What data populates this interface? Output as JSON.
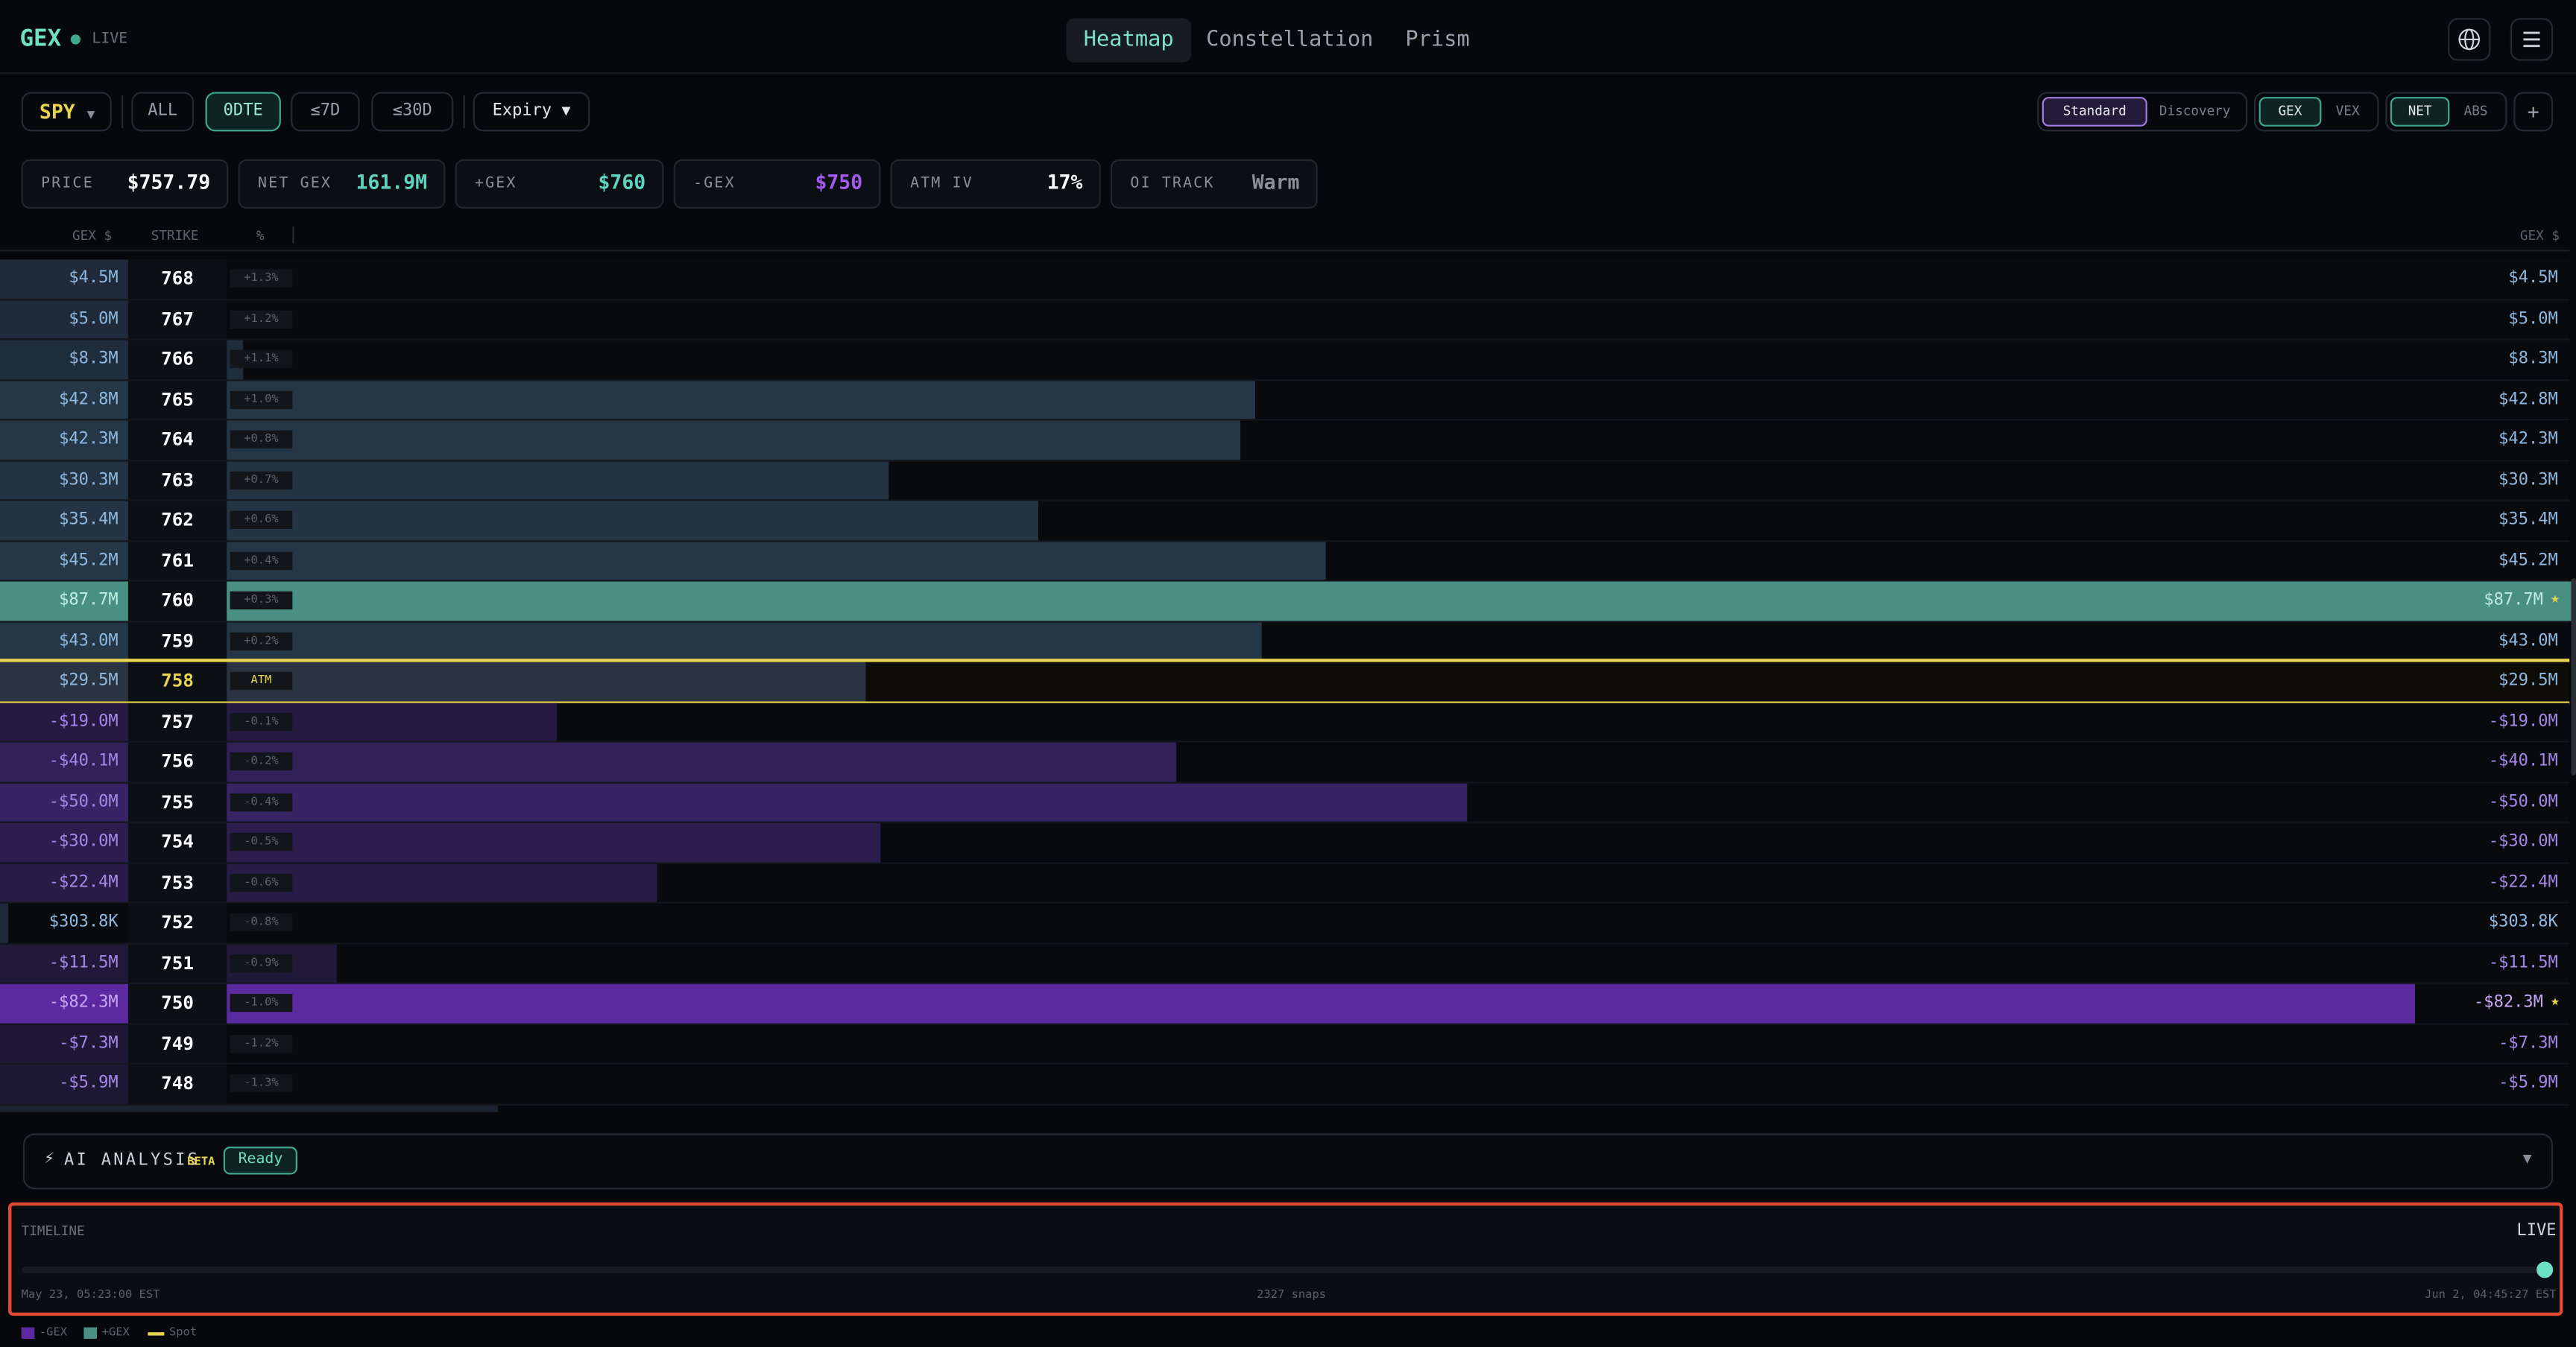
{
  "header": {
    "logo": "GEX",
    "status": "LIVE",
    "tabs": [
      "Heatmap",
      "Constellation",
      "Prism"
    ],
    "active_tab": 0
  },
  "toolbar": {
    "symbol": "SPY",
    "expiry_filters": [
      "ALL",
      "0DTE",
      "≤7D",
      "≤30D"
    ],
    "active_filter": 1,
    "expiry": "Expiry",
    "modes": [
      "Standard",
      "Discovery"
    ],
    "greeks": [
      "GEX",
      "VEX"
    ],
    "aggregation": [
      "NET",
      "ABS"
    ],
    "add": "+"
  },
  "stats": [
    {
      "label": "PRICE",
      "value": "$757.79",
      "color": "#ffffff"
    },
    {
      "label": "NET GEX",
      "value": "161.9M",
      "color": "#5fd4bf"
    },
    {
      "label": "+GEX",
      "value": "$760",
      "color": "#5fd4bf"
    },
    {
      "label": "-GEX",
      "value": "$750",
      "color": "#a45cf0"
    },
    {
      "label": "ATM IV",
      "value": "17%",
      "color": "#ffffff"
    },
    {
      "label": "OI TRACK",
      "value": "Warm",
      "color": "#8a8f98"
    }
  ],
  "columns": {
    "gex": "GEX $",
    "strike": "STRIKE",
    "pct": "%",
    "gex_right": "GEX $"
  },
  "atm_row": 10,
  "rows": [
    {
      "strike": "768",
      "gex_label": "$4.5M",
      "pct": "+1.3%",
      "gex": 4.5
    },
    {
      "strike": "767",
      "gex_label": "$5.0M",
      "pct": "+1.2%",
      "gex": 5.0
    },
    {
      "strike": "766",
      "gex_label": "$8.3M",
      "pct": "+1.1%",
      "gex": 8.3
    },
    {
      "strike": "765",
      "gex_label": "$42.8M",
      "pct": "+1.0%",
      "gex": 42.8
    },
    {
      "strike": "764",
      "gex_label": "$42.3M",
      "pct": "+0.8%",
      "gex": 42.3
    },
    {
      "strike": "763",
      "gex_label": "$30.3M",
      "pct": "+0.7%",
      "gex": 30.3
    },
    {
      "strike": "762",
      "gex_label": "$35.4M",
      "pct": "+0.6%",
      "gex": 35.4
    },
    {
      "strike": "761",
      "gex_label": "$45.2M",
      "pct": "+0.4%",
      "gex": 45.2
    },
    {
      "strike": "760",
      "gex_label": "$87.7M",
      "pct": "+0.3%",
      "gex": 87.7,
      "flag": "★"
    },
    {
      "strike": "759",
      "gex_label": "$43.0M",
      "pct": "+0.2%",
      "gex": 43.0
    },
    {
      "strike": "758",
      "gex_label": "$29.5M",
      "pct": "ATM",
      "gex": 29.5
    },
    {
      "strike": "757",
      "gex_label": "-$19.0M",
      "pct": "-0.1%",
      "gex": -19.0
    },
    {
      "strike": "756",
      "gex_label": "-$40.1M",
      "pct": "-0.2%",
      "gex": -40.1
    },
    {
      "strike": "755",
      "gex_label": "-$50.0M",
      "pct": "-0.4%",
      "gex": -50.0
    },
    {
      "strike": "754",
      "gex_label": "-$30.0M",
      "pct": "-0.5%",
      "gex": -30.0
    },
    {
      "strike": "753",
      "gex_label": "-$22.4M",
      "pct": "-0.6%",
      "gex": -22.4
    },
    {
      "strike": "752",
      "gex_label": "$303.8K",
      "pct": "-0.8%",
      "gex": 0.3038
    },
    {
      "strike": "751",
      "gex_label": "-$11.5M",
      "pct": "-0.9%",
      "gex": -11.5
    },
    {
      "strike": "750",
      "gex_label": "-$82.3M",
      "pct": "-1.0%",
      "gex": -82.3,
      "flag": "★"
    },
    {
      "strike": "749",
      "gex_label": "-$7.3M",
      "pct": "-1.2%",
      "gex": -7.3
    },
    {
      "strike": "748",
      "gex_label": "-$5.9M",
      "pct": "-1.3%",
      "gex": -5.9
    }
  ],
  "ai": {
    "title": "AI ANALYSIS",
    "badge": "BETA",
    "status": "Ready"
  },
  "timeline": {
    "title": "TIMELINE",
    "live": "LIVE",
    "start": "May 23, 05:23:00 EST",
    "count": "2327 snaps",
    "end": "Jun 2, 04:45:27 EST"
  },
  "legend": [
    "-GEX",
    "+GEX",
    "Spot"
  ]
}
